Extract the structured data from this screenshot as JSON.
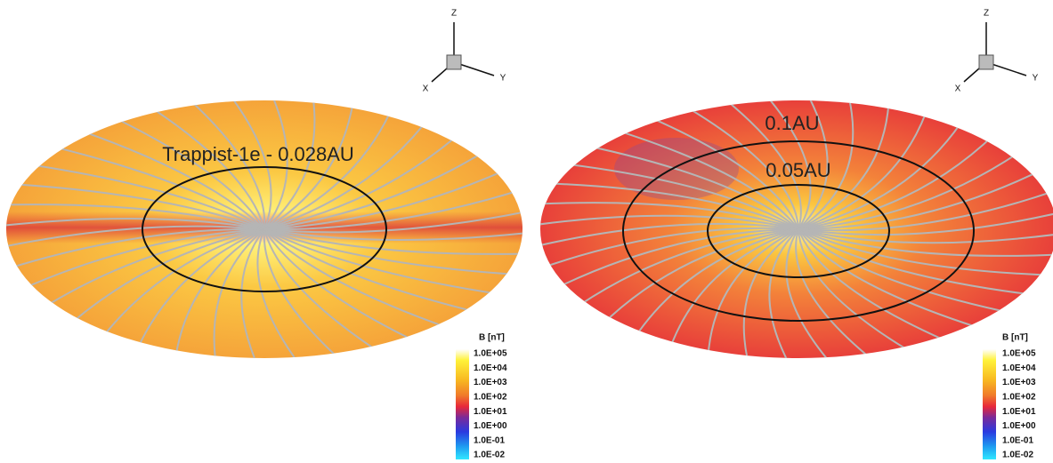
{
  "panels": [
    {
      "annotations": [
        "Trappist-1e - 0.028AU"
      ],
      "axes": {
        "z": "Z",
        "x": "X",
        "y": "Y"
      },
      "colorbar": {
        "title": "B [nT]",
        "labels": [
          "1.0E+05",
          "1.0E+04",
          "1.0E+03",
          "1.0E+02",
          "1.0E+01",
          "1.0E+00",
          "1.0E-01",
          "1.0E-02"
        ]
      }
    },
    {
      "annotations": [
        "0.1AU",
        "0.05AU"
      ],
      "axes": {
        "z": "Z",
        "x": "X",
        "y": "Y"
      },
      "colorbar": {
        "title": "B [nT]",
        "labels": [
          "1.0E+05",
          "1.0E+04",
          "1.0E+03",
          "1.0E+02",
          "1.0E+01",
          "1.0E+00",
          "1.0E-01",
          "1.0E-02"
        ]
      }
    }
  ]
}
